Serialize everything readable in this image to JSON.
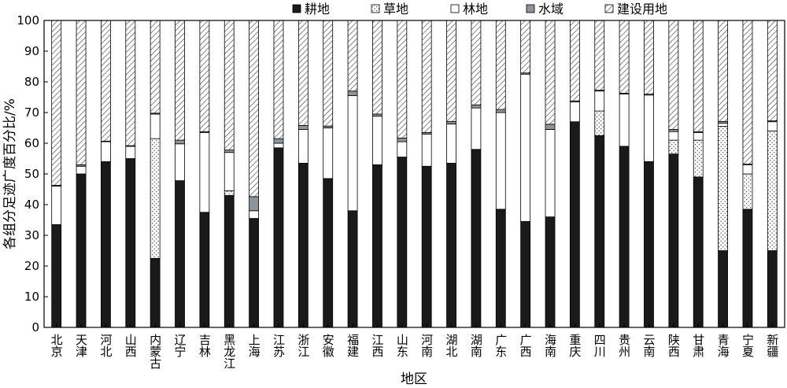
{
  "chart_data": {
    "type": "bar",
    "stacked": true,
    "title": "",
    "xlabel": "地区",
    "ylabel": "各组分足迹广度百分比/%",
    "ylim": [
      0,
      100
    ],
    "yticks": [
      0,
      10,
      20,
      30,
      40,
      50,
      60,
      70,
      80,
      90,
      100
    ],
    "legend_position": "top",
    "grid": false,
    "categories": [
      "北京",
      "天津",
      "河北",
      "山西",
      "内蒙古",
      "辽宁",
      "吉林",
      "黑龙江",
      "上海",
      "江苏",
      "浙江",
      "安徽",
      "福建",
      "江西",
      "山东",
      "河南",
      "湖北",
      "湖南",
      "广东",
      "广西",
      "海南",
      "重庆",
      "四川",
      "贵州",
      "云南",
      "陕西",
      "甘肃",
      "青海",
      "宁夏",
      "新疆"
    ],
    "series": [
      {
        "name": "耕地",
        "pattern": "solid",
        "color": "#1a1a1a",
        "values": [
          33.5,
          50,
          54,
          55,
          22.5,
          47.8,
          37.5,
          43,
          35.5,
          58.5,
          53.5,
          48.5,
          38,
          53,
          55.5,
          52.5,
          53.5,
          58,
          38.5,
          34.5,
          36,
          67,
          62.5,
          59,
          54,
          56.5,
          49,
          25,
          38.5,
          25
        ]
      },
      {
        "name": "草地",
        "pattern": "dots",
        "color": "#ffffff",
        "values": [
          0,
          0,
          0,
          0,
          39,
          0,
          0,
          1.5,
          0,
          0,
          0,
          0,
          0,
          0,
          0,
          0,
          0,
          0,
          0,
          0,
          0,
          0,
          8,
          0,
          0,
          4.5,
          12,
          40.5,
          11.5,
          39
        ]
      },
      {
        "name": "林地",
        "pattern": "white",
        "color": "#ffffff",
        "values": [
          12.5,
          2.5,
          6.5,
          4,
          8,
          12,
          26,
          12.5,
          2.5,
          1.5,
          11,
          16.5,
          37.5,
          15.8,
          5,
          10.5,
          12.8,
          13.5,
          31.5,
          48,
          28.5,
          6.5,
          6.5,
          17,
          21.7,
          2.8,
          2.5,
          1,
          3,
          3
        ]
      },
      {
        "name": "水域",
        "pattern": "gray",
        "color": "#8c959b",
        "values": [
          0.3,
          0.5,
          0.2,
          0.2,
          0.3,
          1.2,
          0.3,
          0.8,
          4.6,
          1.5,
          1.3,
          0.6,
          1.5,
          0.7,
          1.2,
          0.5,
          0.8,
          1,
          1,
          0.4,
          1.7,
          0.3,
          0.3,
          0.3,
          0.3,
          0.7,
          0.3,
          0.6,
          0.2,
          0.3
        ]
      },
      {
        "name": "建设用地",
        "pattern": "hatch",
        "color": "#ffffff",
        "values": [
          53.7,
          47,
          39.3,
          40.8,
          30.2,
          39,
          36.2,
          42.2,
          57.4,
          38.5,
          34.2,
          34.4,
          23,
          30.5,
          38.3,
          36.5,
          32.9,
          27.5,
          29,
          17.1,
          33.8,
          26.2,
          22.7,
          23.7,
          24,
          35.5,
          36.2,
          32.9,
          46.8,
          32.7
        ]
      }
    ]
  }
}
